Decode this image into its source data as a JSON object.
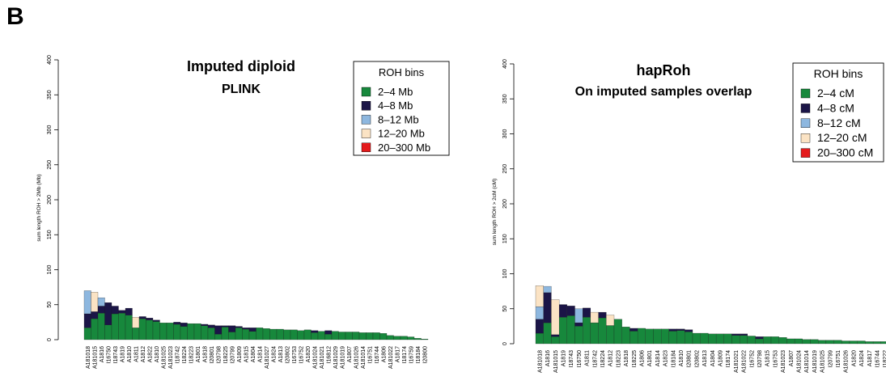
{
  "panel_label": "B",
  "colors": {
    "2-4": "#17883c",
    "4-8": "#1b1547",
    "8-12": "#8db7df",
    "12-20": "#fbe3c4",
    "20-300": "#e41a1c"
  },
  "chart_data": [
    {
      "type": "bar",
      "stacked": true,
      "title": "Imputed diploid",
      "subtitle": "PLINK",
      "xlabel": "",
      "ylabel": "sum length ROH > 2Mb (Mb)",
      "ylim": [
        0,
        400
      ],
      "yticks": [
        "0",
        "50",
        "100",
        "150",
        "200",
        "250",
        "300",
        "350",
        "400"
      ],
      "legend": {
        "title": "ROH bins",
        "placement": "top-right",
        "entries": [
          "2–4 Mb",
          "4–8 Mb",
          "8–12 Mb",
          "12–20 Mb",
          "20–300 Mb"
        ]
      },
      "categories": [
        "A181018",
        "A181015",
        "A1816",
        "I16750",
        "I18743",
        "A1819",
        "A1810",
        "A1811",
        "A1812",
        "A1822",
        "A1810",
        "A181025",
        "A181023",
        "I18742",
        "I18224",
        "I18223",
        "A1801",
        "A1818",
        "I20801",
        "I20798",
        "I18225",
        "I20799",
        "A1809",
        "A1815",
        "A1804",
        "A1814",
        "A181027",
        "A1824",
        "A1813",
        "I20802",
        "I16753",
        "I16752",
        "A1820",
        "A181024",
        "A181021",
        "I16812",
        "A181029",
        "A181019",
        "A1807",
        "A181026",
        "A181014",
        "I16751",
        "I16744",
        "A1806",
        "A181022",
        "A1817",
        "I18174",
        "I16759",
        "I18184",
        "I20800"
      ],
      "series": [
        {
          "name": "2–4 Mb",
          "values": [
            17,
            30,
            38,
            21,
            37,
            38,
            35,
            17,
            30,
            28,
            26,
            24,
            24,
            22,
            19,
            23,
            23,
            20,
            17,
            8,
            18,
            11,
            17,
            15,
            12,
            17,
            16,
            15,
            15,
            14,
            14,
            13,
            14,
            10,
            12,
            8,
            12,
            11,
            11,
            11,
            10,
            10,
            10,
            9,
            6,
            5,
            5,
            4,
            2,
            1
          ]
        },
        {
          "name": "4–8 Mb",
          "values": [
            20,
            10,
            10,
            32,
            11,
            4,
            10,
            0,
            3,
            3,
            2,
            0,
            0,
            3,
            5,
            0,
            0,
            2,
            4,
            12,
            2,
            9,
            2,
            2,
            5,
            0,
            0,
            0,
            0,
            0,
            0,
            0,
            0,
            3,
            0,
            5,
            0,
            0,
            0,
            0,
            0,
            0,
            0,
            0,
            0,
            0,
            0,
            0,
            0,
            0
          ]
        },
        {
          "name": "8–12 Mb",
          "values": [
            33,
            0,
            12,
            0,
            0,
            0,
            0,
            0,
            0,
            0,
            0,
            0,
            0,
            0,
            0,
            0,
            0,
            0,
            0,
            0,
            0,
            0,
            0,
            0,
            0,
            0,
            0,
            0,
            0,
            0,
            0,
            0,
            0,
            0,
            0,
            0,
            0,
            0,
            0,
            0,
            0,
            0,
            0,
            0,
            0,
            0,
            0,
            0,
            0,
            0
          ]
        },
        {
          "name": "12–20 Mb",
          "values": [
            0,
            28,
            0,
            0,
            0,
            0,
            0,
            15,
            0,
            0,
            0,
            0,
            0,
            0,
            0,
            0,
            0,
            0,
            0,
            0,
            0,
            0,
            0,
            0,
            0,
            0,
            0,
            0,
            0,
            0,
            0,
            0,
            0,
            0,
            0,
            0,
            0,
            0,
            0,
            0,
            0,
            0,
            0,
            0,
            0,
            0,
            0,
            0,
            0,
            0
          ]
        },
        {
          "name": "20–300 Mb",
          "values": [
            0,
            0,
            0,
            0,
            0,
            0,
            0,
            0,
            0,
            0,
            0,
            0,
            0,
            0,
            0,
            0,
            0,
            0,
            0,
            0,
            0,
            0,
            0,
            0,
            0,
            0,
            0,
            0,
            0,
            0,
            0,
            0,
            0,
            0,
            0,
            0,
            0,
            0,
            0,
            0,
            0,
            0,
            0,
            0,
            0,
            0,
            0,
            0,
            0,
            0
          ]
        }
      ]
    },
    {
      "type": "bar",
      "stacked": true,
      "title": "hapRoh",
      "subtitle": "On imputed samples overlap",
      "xlabel": "",
      "ylabel": "sum length ROH > 2cM (cM)",
      "ylim": [
        0,
        400
      ],
      "yticks": [
        "0",
        "50",
        "100",
        "150",
        "200",
        "250",
        "300",
        "350",
        "400"
      ],
      "legend": {
        "title": "ROH bins",
        "placement": "top-right",
        "entries": [
          "2–4 cM",
          "4–8 cM",
          "8–12 cM",
          "12–20 cM",
          "20–300 cM"
        ]
      },
      "categories": [
        "A181018",
        "A1816",
        "A181015",
        "A1819",
        "I18743",
        "I16750",
        "A1811",
        "I18742",
        "I18224",
        "A1812",
        "I18223",
        "A1818",
        "I18225",
        "A1806",
        "A1801",
        "A1814",
        "A1823",
        "I18184",
        "A1810",
        "I20801",
        "I20802",
        "A1813",
        "A1804",
        "A1809",
        "I18174",
        "A181021",
        "A181022",
        "I16752",
        "I20798",
        "A1815",
        "I16753",
        "A181023",
        "A1807",
        "A181024",
        "A181014",
        "A181019",
        "A181025",
        "I20799",
        "I16751",
        "A181026",
        "A1820",
        "A1824",
        "A1817",
        "I16744",
        "I18222",
        "I20800",
        "A181027",
        "A181028"
      ],
      "series": [
        {
          "name": "2–4 cM",
          "values": [
            15,
            30,
            10,
            38,
            40,
            25,
            38,
            30,
            37,
            26,
            35,
            24,
            18,
            22,
            21,
            21,
            21,
            18,
            19,
            17,
            15,
            15,
            14,
            14,
            14,
            12,
            12,
            11,
            7,
            10,
            10,
            9,
            7,
            7,
            6,
            6,
            5,
            5,
            5,
            4,
            4,
            4,
            3,
            3,
            3,
            3,
            2,
            2
          ]
        },
        {
          "name": "4–8 cM",
          "values": [
            20,
            43,
            3,
            18,
            14,
            5,
            13,
            0,
            8,
            0,
            0,
            0,
            4,
            0,
            0,
            0,
            0,
            3,
            2,
            3,
            0,
            0,
            0,
            0,
            0,
            2,
            2,
            0,
            3,
            0,
            0,
            0,
            0,
            0,
            0,
            0,
            0,
            0,
            0,
            0,
            0,
            0,
            0,
            0,
            0,
            0,
            0,
            0
          ]
        },
        {
          "name": "8–12 cM",
          "values": [
            18,
            9,
            0,
            0,
            0,
            20,
            0,
            0,
            0,
            0,
            0,
            0,
            0,
            0,
            0,
            0,
            0,
            0,
            0,
            0,
            0,
            0,
            0,
            0,
            0,
            0,
            0,
            0,
            0,
            0,
            0,
            0,
            0,
            0,
            0,
            0,
            0,
            0,
            0,
            0,
            0,
            0,
            0,
            0,
            0,
            0,
            0,
            0
          ]
        },
        {
          "name": "12–20 cM",
          "values": [
            30,
            0,
            50,
            0,
            0,
            0,
            0,
            15,
            0,
            15,
            0,
            0,
            0,
            0,
            0,
            0,
            0,
            0,
            0,
            0,
            0,
            0,
            0,
            0,
            0,
            0,
            0,
            0,
            0,
            0,
            0,
            0,
            0,
            0,
            0,
            0,
            0,
            0,
            0,
            0,
            0,
            0,
            0,
            0,
            0,
            0,
            0,
            0
          ]
        },
        {
          "name": "20–300 cM",
          "values": [
            0,
            0,
            0,
            0,
            0,
            0,
            0,
            0,
            0,
            0,
            0,
            0,
            0,
            0,
            0,
            0,
            0,
            0,
            0,
            0,
            0,
            0,
            0,
            0,
            0,
            0,
            0,
            0,
            0,
            0,
            0,
            0,
            0,
            0,
            0,
            0,
            0,
            0,
            0,
            0,
            0,
            0,
            0,
            0,
            0,
            0,
            0,
            0
          ]
        }
      ]
    }
  ]
}
